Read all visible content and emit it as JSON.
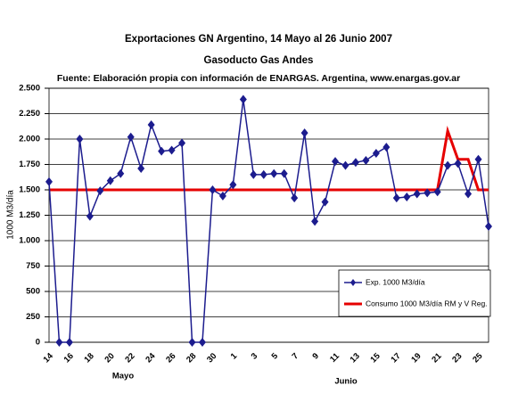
{
  "chart_data": {
    "type": "line",
    "title": "Exportaciones GN Argentino, 14 Mayo al 26 Junio 2007",
    "subtitle": "Gasoducto Gas Andes",
    "source": "Fuente: Elaboración propia con información de ENARGAS. Argentina, www.enargas.gov.ar",
    "y_label": "1000 M3/día",
    "month_labels": [
      "Mayo",
      "Junio"
    ],
    "categories": [
      "14",
      null,
      "16",
      null,
      "18",
      null,
      "20",
      null,
      "22",
      null,
      "24",
      null,
      "26",
      null,
      "28",
      null,
      "30",
      null,
      "1",
      null,
      "3",
      null,
      "5",
      null,
      "7",
      null,
      "9",
      null,
      "11",
      null,
      "13",
      null,
      "15",
      null,
      "17",
      null,
      "19",
      null,
      "21",
      null,
      "23",
      null,
      "25",
      null
    ],
    "series": [
      {
        "name": "Exp. 1000 M3/día",
        "color": "#1c1c8e",
        "marker": "diamond",
        "values": [
          1580,
          0,
          0,
          2000,
          1240,
          1490,
          1590,
          1660,
          2020,
          1710,
          2140,
          1880,
          1890,
          1960,
          0,
          0,
          1500,
          1440,
          1550,
          2390,
          1650,
          1650,
          1660,
          1660,
          1420,
          2060,
          1190,
          1380,
          1780,
          1740,
          1770,
          1790,
          1860,
          1920,
          1420,
          1430,
          1460,
          1470,
          1480,
          1740,
          1760,
          1460,
          1800,
          1140
        ]
      },
      {
        "name": "Consumo 1000 M3/día RM y V Reg.",
        "color": "#e60000",
        "values": [
          1500,
          1500,
          1500,
          1500,
          1500,
          1500,
          1500,
          1500,
          1500,
          1500,
          1500,
          1500,
          1500,
          1500,
          1500,
          1500,
          1500,
          1500,
          1500,
          1500,
          1500,
          1500,
          1500,
          1500,
          1500,
          1500,
          1500,
          1500,
          1500,
          1500,
          1500,
          1500,
          1500,
          1500,
          1500,
          1500,
          1500,
          1500,
          1500,
          2080,
          1800,
          1800,
          1500,
          1500
        ]
      }
    ],
    "ylim": [
      0,
      2500
    ],
    "yticks": [
      0,
      {
        "value": 250,
        "label": "250"
      },
      {
        "value": 500,
        "label": "500"
      },
      {
        "value": 750,
        "label": "750"
      },
      {
        "value": 1000,
        "label": "1.000"
      },
      {
        "value": 1250,
        "label": "1.250"
      },
      {
        "value": 1500,
        "label": "1.500"
      },
      {
        "value": 1750,
        "label": "1.750"
      },
      {
        "value": 2000,
        "label": "2.000"
      },
      {
        "value": 2250,
        "label": "2.250"
      },
      {
        "value": 2500,
        "label": "2.500"
      }
    ],
    "grid": true,
    "legend": "lower right"
  }
}
